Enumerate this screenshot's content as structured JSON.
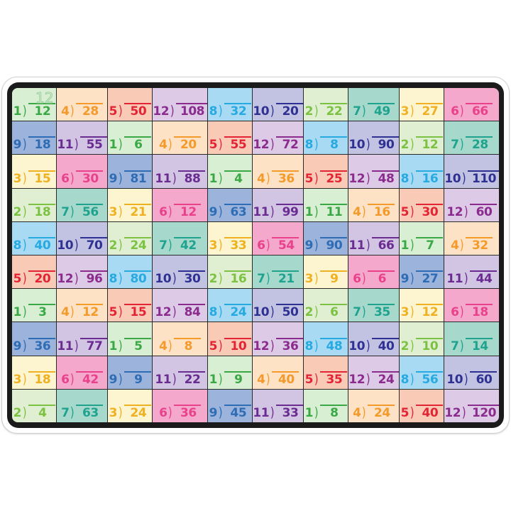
{
  "hint_answer": "12",
  "colors": {
    "1": {
      "text": "#3aa845",
      "bg": "#d8efd4"
    },
    "2": {
      "text": "#7cc242",
      "bg": "#e0efd2"
    },
    "3": {
      "text": "#efb021",
      "bg": "#fdf5cf"
    },
    "4": {
      "text": "#f39a2b",
      "bg": "#fde2c6"
    },
    "5": {
      "text": "#e32434",
      "bg": "#f9cbb7"
    },
    "6": {
      "text": "#e9418b",
      "bg": "#f4a8cc"
    },
    "7": {
      "text": "#1fa38e",
      "bg": "#a6d8cc"
    },
    "8": {
      "text": "#27a9e1",
      "bg": "#a8dbf3"
    },
    "9": {
      "text": "#2e6db5",
      "bg": "#9cb3dc"
    },
    "10": {
      "text": "#2e3192",
      "bg": "#c2c2e2"
    },
    "11": {
      "text": "#6a2c91",
      "bg": "#d2c4e3"
    },
    "12": {
      "text": "#8a2b8d",
      "bg": "#dccae6"
    }
  },
  "rows": [
    [
      [
        "1",
        "12"
      ],
      [
        "4",
        "28"
      ],
      [
        "5",
        "50"
      ],
      [
        "12",
        "108"
      ],
      [
        "8",
        "32"
      ],
      [
        "10",
        "20"
      ],
      [
        "2",
        "22"
      ],
      [
        "7",
        "49"
      ],
      [
        "3",
        "27"
      ],
      [
        "6",
        "66"
      ]
    ],
    [
      [
        "9",
        "18"
      ],
      [
        "11",
        "55"
      ],
      [
        "1",
        "6"
      ],
      [
        "4",
        "20"
      ],
      [
        "5",
        "55"
      ],
      [
        "12",
        "72"
      ],
      [
        "8",
        "8"
      ],
      [
        "10",
        "90"
      ],
      [
        "2",
        "12"
      ],
      [
        "7",
        "28"
      ]
    ],
    [
      [
        "3",
        "15"
      ],
      [
        "6",
        "30"
      ],
      [
        "9",
        "81"
      ],
      [
        "11",
        "88"
      ],
      [
        "1",
        "4"
      ],
      [
        "4",
        "36"
      ],
      [
        "5",
        "25"
      ],
      [
        "12",
        "48"
      ],
      [
        "8",
        "16"
      ],
      [
        "10",
        "110"
      ]
    ],
    [
      [
        "2",
        "18"
      ],
      [
        "7",
        "56"
      ],
      [
        "3",
        "21"
      ],
      [
        "6",
        "12"
      ],
      [
        "9",
        "63"
      ],
      [
        "11",
        "99"
      ],
      [
        "1",
        "11"
      ],
      [
        "4",
        "16"
      ],
      [
        "5",
        "30"
      ],
      [
        "12",
        "60"
      ]
    ],
    [
      [
        "8",
        "40"
      ],
      [
        "10",
        "70"
      ],
      [
        "2",
        "24"
      ],
      [
        "7",
        "42"
      ],
      [
        "3",
        "33"
      ],
      [
        "6",
        "54"
      ],
      [
        "9",
        "90"
      ],
      [
        "11",
        "66"
      ],
      [
        "1",
        "7"
      ],
      [
        "4",
        "32"
      ]
    ],
    [
      [
        "5",
        "20"
      ],
      [
        "12",
        "96"
      ],
      [
        "8",
        "80"
      ],
      [
        "10",
        "30"
      ],
      [
        "2",
        "16"
      ],
      [
        "7",
        "21"
      ],
      [
        "3",
        "9"
      ],
      [
        "6",
        "6"
      ],
      [
        "9",
        "27"
      ],
      [
        "11",
        "44"
      ]
    ],
    [
      [
        "1",
        "3"
      ],
      [
        "4",
        "12"
      ],
      [
        "5",
        "15"
      ],
      [
        "12",
        "84"
      ],
      [
        "8",
        "24"
      ],
      [
        "10",
        "50"
      ],
      [
        "2",
        "6"
      ],
      [
        "7",
        "35"
      ],
      [
        "3",
        "12"
      ],
      [
        "6",
        "18"
      ]
    ],
    [
      [
        "9",
        "36"
      ],
      [
        "11",
        "77"
      ],
      [
        "1",
        "5"
      ],
      [
        "4",
        "8"
      ],
      [
        "5",
        "10"
      ],
      [
        "12",
        "36"
      ],
      [
        "8",
        "48"
      ],
      [
        "10",
        "40"
      ],
      [
        "2",
        "10"
      ],
      [
        "7",
        "14"
      ]
    ],
    [
      [
        "3",
        "18"
      ],
      [
        "6",
        "42"
      ],
      [
        "9",
        "9"
      ],
      [
        "11",
        "22"
      ],
      [
        "1",
        "9"
      ],
      [
        "4",
        "40"
      ],
      [
        "5",
        "35"
      ],
      [
        "12",
        "24"
      ],
      [
        "8",
        "56"
      ],
      [
        "10",
        "60"
      ]
    ],
    [
      [
        "2",
        "4"
      ],
      [
        "7",
        "63"
      ],
      [
        "3",
        "24"
      ],
      [
        "6",
        "36"
      ],
      [
        "9",
        "45"
      ],
      [
        "11",
        "33"
      ],
      [
        "1",
        "8"
      ],
      [
        "4",
        "24"
      ],
      [
        "5",
        "40"
      ],
      [
        "12",
        "120"
      ]
    ]
  ]
}
